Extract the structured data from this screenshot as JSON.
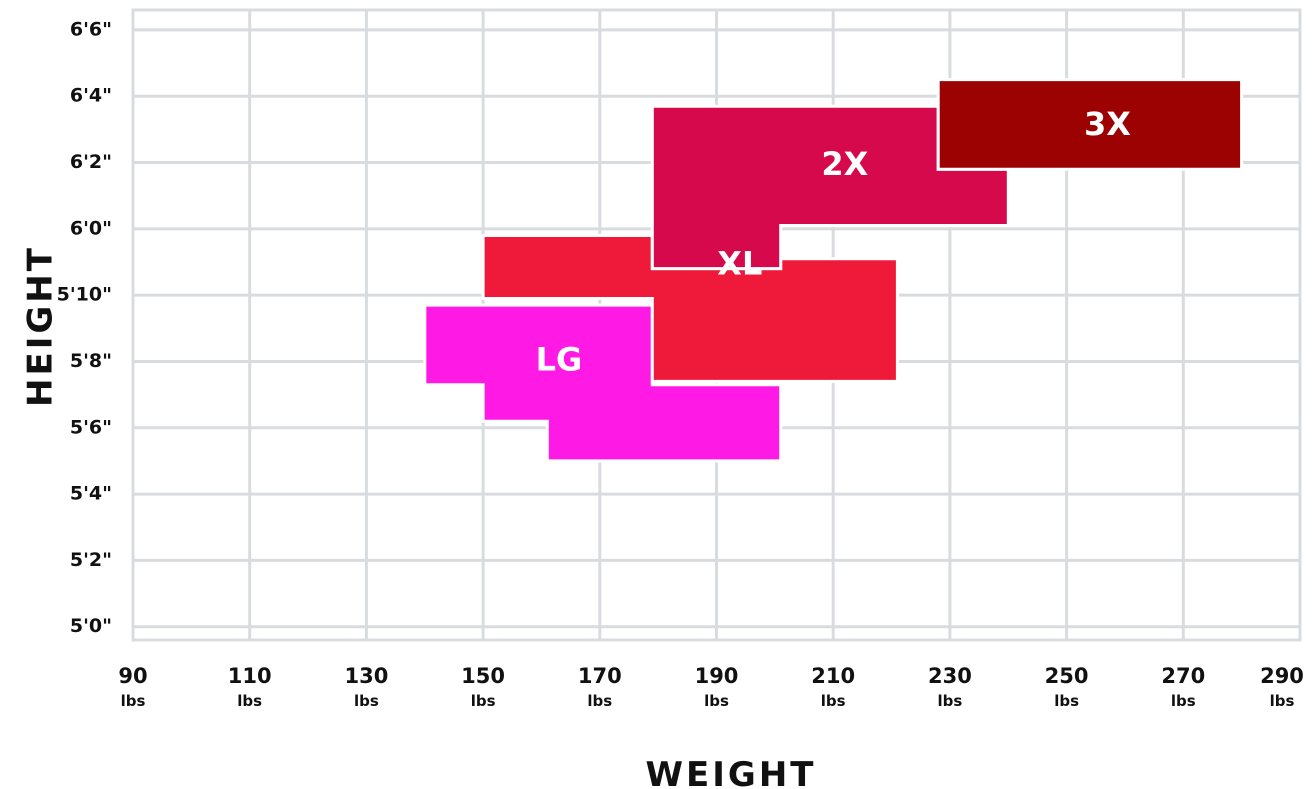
{
  "chart_data": {
    "type": "area",
    "xlabel": "WEIGHT",
    "ylabel": "HEIGHT",
    "x_unit": "lbs",
    "xlim": [
      90,
      290
    ],
    "ylim": [
      59.6,
      78.6
    ],
    "x_ticks": [
      {
        "value": 90,
        "label": "90"
      },
      {
        "value": 110,
        "label": "110"
      },
      {
        "value": 130,
        "label": "130"
      },
      {
        "value": 150,
        "label": "150"
      },
      {
        "value": 170,
        "label": "170"
      },
      {
        "value": 190,
        "label": "190"
      },
      {
        "value": 210,
        "label": "210"
      },
      {
        "value": 230,
        "label": "230"
      },
      {
        "value": 250,
        "label": "250"
      },
      {
        "value": 270,
        "label": "270"
      },
      {
        "value": 290,
        "label": "290"
      }
    ],
    "y_ticks": [
      {
        "value": 60,
        "label": "5'0\""
      },
      {
        "value": 62,
        "label": "5'2\""
      },
      {
        "value": 64,
        "label": "5'4\""
      },
      {
        "value": 66,
        "label": "5'6\""
      },
      {
        "value": 68,
        "label": "5'8\""
      },
      {
        "value": 70,
        "label": "5'10\""
      },
      {
        "value": 72,
        "label": "6'0\""
      },
      {
        "value": 74,
        "label": "6'2\""
      },
      {
        "value": 76,
        "label": "6'4\""
      },
      {
        "value": 78,
        "label": "6'6\""
      }
    ],
    "grid": true,
    "series": [
      {
        "name": "LG",
        "color": "#ff19e5",
        "label_at": [
          163,
          68
        ],
        "polygon": [
          [
            140,
            69.7
          ],
          [
            179,
            69.7
          ],
          [
            179,
            67.3
          ],
          [
            201,
            67.3
          ],
          [
            201,
            65.0
          ],
          [
            161,
            65.0
          ],
          [
            161,
            66.2
          ],
          [
            150,
            66.2
          ],
          [
            150,
            67.3
          ],
          [
            140,
            67.3
          ]
        ]
      },
      {
        "name": "XL",
        "color": "#ef1a3a",
        "label_at": [
          194,
          70.9
        ],
        "polygon": [
          [
            150,
            71.8
          ],
          [
            179,
            71.8
          ],
          [
            179,
            70.8
          ],
          [
            201,
            70.8
          ],
          [
            201,
            71.1
          ],
          [
            221,
            71.1
          ],
          [
            221,
            67.4
          ],
          [
            179,
            67.4
          ],
          [
            179,
            69.9
          ],
          [
            150,
            69.9
          ]
        ]
      },
      {
        "name": "2X",
        "color": "#d6094d",
        "label_at": [
          212,
          73.9
        ],
        "polygon": [
          [
            179,
            75.7
          ],
          [
            228,
            75.7
          ],
          [
            228,
            73.8
          ],
          [
            240,
            73.8
          ],
          [
            240,
            72.1
          ],
          [
            201,
            72.1
          ],
          [
            201,
            70.8
          ],
          [
            179,
            70.8
          ]
        ]
      },
      {
        "name": "3X",
        "color": "#9c0202",
        "label_at": [
          257,
          75.1
        ],
        "polygon": [
          [
            228,
            76.5
          ],
          [
            280,
            76.5
          ],
          [
            280,
            73.8
          ],
          [
            228,
            73.8
          ]
        ]
      }
    ]
  }
}
